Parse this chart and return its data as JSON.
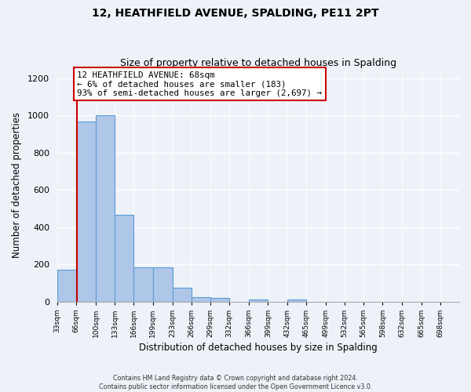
{
  "title": "12, HEATHFIELD AVENUE, SPALDING, PE11 2PT",
  "subtitle": "Size of property relative to detached houses in Spalding",
  "xlabel": "Distribution of detached houses by size in Spalding",
  "ylabel": "Number of detached properties",
  "bin_edges": [
    33,
    66,
    100,
    133,
    166,
    199,
    233,
    266,
    299,
    332,
    366,
    399,
    432,
    465,
    499,
    532,
    565,
    598,
    632,
    665,
    698
  ],
  "bar_heights": [
    170,
    970,
    1000,
    465,
    185,
    185,
    75,
    25,
    20,
    0,
    10,
    0,
    10,
    0,
    0,
    0,
    0,
    0,
    0,
    0
  ],
  "bar_color": "#aec6e8",
  "bar_edge_color": "#5b9bd5",
  "property_size": 68,
  "property_line_color": "#cc0000",
  "annotation_box_color": "#cc0000",
  "annotation_line1": "12 HEATHFIELD AVENUE: 68sqm",
  "annotation_line2": "← 6% of detached houses are smaller (183)",
  "annotation_line3": "93% of semi-detached houses are larger (2,697) →",
  "ylim": [
    0,
    1250
  ],
  "yticks": [
    0,
    200,
    400,
    600,
    800,
    1000,
    1200
  ],
  "tick_labels": [
    "33sqm",
    "66sqm",
    "100sqm",
    "133sqm",
    "166sqm",
    "199sqm",
    "233sqm",
    "266sqm",
    "299sqm",
    "332sqm",
    "366sqm",
    "399sqm",
    "432sqm",
    "465sqm",
    "499sqm",
    "532sqm",
    "565sqm",
    "598sqm",
    "632sqm",
    "665sqm",
    "698sqm"
  ],
  "footer_line1": "Contains HM Land Registry data © Crown copyright and database right 2024.",
  "footer_line2": "Contains public sector information licensed under the Open Government Licence v3.0.",
  "background_color": "#eef2f8",
  "grid_color": "#ffffff"
}
